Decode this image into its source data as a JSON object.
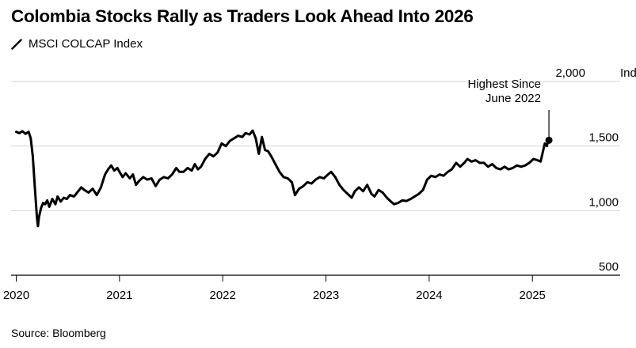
{
  "chart_data": {
    "type": "line",
    "title": "Colombia Stocks Rally as Traders Look Ahead Into 2026",
    "legend": [
      {
        "name": "MSCI COLCAP Index",
        "color": "#000000"
      }
    ],
    "y_unit_label": "Index",
    "ylim": [
      500,
      2000
    ],
    "yticks": [
      {
        "value": 500,
        "label": "500"
      },
      {
        "value": 1000,
        "label": "1,000"
      },
      {
        "value": 1500,
        "label": "1,500"
      },
      {
        "value": 2000,
        "label": "2,000"
      }
    ],
    "xlim": [
      2019.95,
      2025.85
    ],
    "xticks": [
      {
        "value": 2020,
        "label": "2020"
      },
      {
        "value": 2021,
        "label": "2021"
      },
      {
        "value": 2022,
        "label": "2022"
      },
      {
        "value": 2023,
        "label": "2023"
      },
      {
        "value": 2024,
        "label": "2024"
      },
      {
        "value": 2025,
        "label": "2025"
      }
    ],
    "series": [
      {
        "name": "MSCI COLCAP Index",
        "color": "#000000",
        "points": [
          [
            2020.0,
            1610
          ],
          [
            2020.03,
            1600
          ],
          [
            2020.06,
            1615
          ],
          [
            2020.09,
            1595
          ],
          [
            2020.12,
            1610
          ],
          [
            2020.14,
            1560
          ],
          [
            2020.16,
            1420
          ],
          [
            2020.18,
            1180
          ],
          [
            2020.2,
            950
          ],
          [
            2020.21,
            880
          ],
          [
            2020.22,
            950
          ],
          [
            2020.24,
            1020
          ],
          [
            2020.26,
            1060
          ],
          [
            2020.28,
            1050
          ],
          [
            2020.3,
            1080
          ],
          [
            2020.32,
            1030
          ],
          [
            2020.35,
            1090
          ],
          [
            2020.38,
            1050
          ],
          [
            2020.4,
            1110
          ],
          [
            2020.43,
            1070
          ],
          [
            2020.46,
            1100
          ],
          [
            2020.49,
            1090
          ],
          [
            2020.52,
            1120
          ],
          [
            2020.56,
            1110
          ],
          [
            2020.6,
            1150
          ],
          [
            2020.63,
            1180
          ],
          [
            2020.66,
            1160
          ],
          [
            2020.7,
            1140
          ],
          [
            2020.74,
            1170
          ],
          [
            2020.78,
            1120
          ],
          [
            2020.82,
            1180
          ],
          [
            2020.86,
            1280
          ],
          [
            2020.89,
            1320
          ],
          [
            2020.92,
            1350
          ],
          [
            2020.95,
            1310
          ],
          [
            2020.98,
            1330
          ],
          [
            2021.0,
            1300
          ],
          [
            2021.03,
            1260
          ],
          [
            2021.06,
            1290
          ],
          [
            2021.1,
            1250
          ],
          [
            2021.13,
            1280
          ],
          [
            2021.16,
            1200
          ],
          [
            2021.19,
            1230
          ],
          [
            2021.23,
            1260
          ],
          [
            2021.27,
            1240
          ],
          [
            2021.31,
            1250
          ],
          [
            2021.35,
            1190
          ],
          [
            2021.39,
            1240
          ],
          [
            2021.43,
            1260
          ],
          [
            2021.47,
            1250
          ],
          [
            2021.51,
            1280
          ],
          [
            2021.55,
            1330
          ],
          [
            2021.58,
            1300
          ],
          [
            2021.62,
            1300
          ],
          [
            2021.66,
            1330
          ],
          [
            2021.7,
            1310
          ],
          [
            2021.73,
            1360
          ],
          [
            2021.76,
            1320
          ],
          [
            2021.79,
            1340
          ],
          [
            2021.83,
            1400
          ],
          [
            2021.87,
            1440
          ],
          [
            2021.91,
            1420
          ],
          [
            2021.95,
            1450
          ],
          [
            2021.99,
            1520
          ],
          [
            2022.03,
            1500
          ],
          [
            2022.07,
            1540
          ],
          [
            2022.11,
            1560
          ],
          [
            2022.15,
            1580
          ],
          [
            2022.19,
            1570
          ],
          [
            2022.22,
            1600
          ],
          [
            2022.26,
            1590
          ],
          [
            2022.29,
            1620
          ],
          [
            2022.32,
            1560
          ],
          [
            2022.35,
            1440
          ],
          [
            2022.38,
            1570
          ],
          [
            2022.41,
            1470
          ],
          [
            2022.44,
            1460
          ],
          [
            2022.47,
            1420
          ],
          [
            2022.51,
            1360
          ],
          [
            2022.55,
            1300
          ],
          [
            2022.59,
            1260
          ],
          [
            2022.63,
            1250
          ],
          [
            2022.67,
            1220
          ],
          [
            2022.7,
            1120
          ],
          [
            2022.74,
            1170
          ],
          [
            2022.78,
            1190
          ],
          [
            2022.82,
            1220
          ],
          [
            2022.86,
            1210
          ],
          [
            2022.9,
            1240
          ],
          [
            2022.94,
            1260
          ],
          [
            2022.98,
            1250
          ],
          [
            2023.02,
            1280
          ],
          [
            2023.05,
            1300
          ],
          [
            2023.09,
            1260
          ],
          [
            2023.13,
            1200
          ],
          [
            2023.17,
            1160
          ],
          [
            2023.21,
            1130
          ],
          [
            2023.25,
            1100
          ],
          [
            2023.28,
            1150
          ],
          [
            2023.32,
            1180
          ],
          [
            2023.36,
            1150
          ],
          [
            2023.4,
            1200
          ],
          [
            2023.44,
            1130
          ],
          [
            2023.47,
            1110
          ],
          [
            2023.51,
            1160
          ],
          [
            2023.55,
            1140
          ],
          [
            2023.59,
            1100
          ],
          [
            2023.63,
            1070
          ],
          [
            2023.66,
            1050
          ],
          [
            2023.7,
            1060
          ],
          [
            2023.74,
            1080
          ],
          [
            2023.78,
            1075
          ],
          [
            2023.82,
            1090
          ],
          [
            2023.86,
            1110
          ],
          [
            2023.9,
            1130
          ],
          [
            2023.94,
            1160
          ],
          [
            2023.98,
            1240
          ],
          [
            2024.02,
            1270
          ],
          [
            2024.06,
            1260
          ],
          [
            2024.1,
            1280
          ],
          [
            2024.14,
            1270
          ],
          [
            2024.18,
            1300
          ],
          [
            2024.22,
            1320
          ],
          [
            2024.26,
            1370
          ],
          [
            2024.3,
            1340
          ],
          [
            2024.34,
            1370
          ],
          [
            2024.37,
            1400
          ],
          [
            2024.41,
            1380
          ],
          [
            2024.45,
            1390
          ],
          [
            2024.49,
            1370
          ],
          [
            2024.53,
            1370
          ],
          [
            2024.57,
            1340
          ],
          [
            2024.61,
            1360
          ],
          [
            2024.65,
            1330
          ],
          [
            2024.69,
            1320
          ],
          [
            2024.73,
            1340
          ],
          [
            2024.77,
            1320
          ],
          [
            2024.81,
            1330
          ],
          [
            2024.85,
            1350
          ],
          [
            2024.89,
            1340
          ],
          [
            2024.93,
            1350
          ],
          [
            2024.97,
            1370
          ],
          [
            2025.01,
            1400
          ],
          [
            2025.05,
            1390
          ],
          [
            2025.08,
            1380
          ],
          [
            2025.1,
            1450
          ],
          [
            2025.12,
            1520
          ],
          [
            2025.14,
            1500
          ],
          [
            2025.15,
            1540
          ],
          [
            2025.16,
            1545
          ]
        ]
      }
    ],
    "annotations": [
      {
        "text": "Highest Since June 2022",
        "lines": [
          "Highest Since",
          "June 2022"
        ],
        "x": 2025.16,
        "y": 1545
      }
    ]
  },
  "source": "Source: Bloomberg"
}
